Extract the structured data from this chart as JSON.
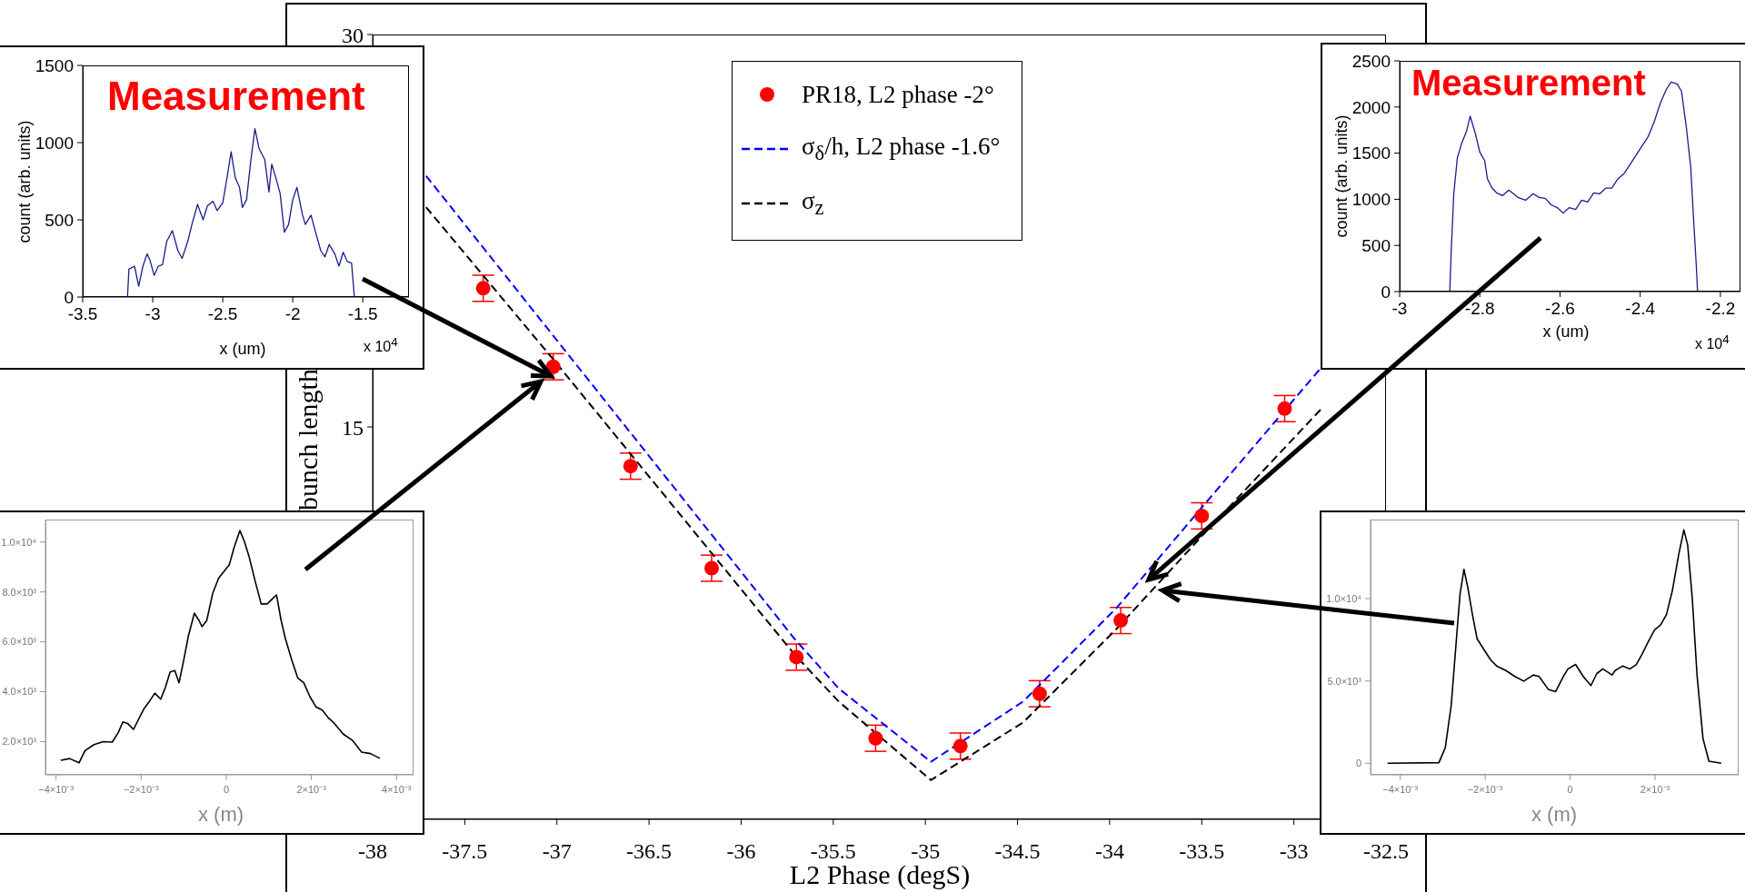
{
  "chart_data": [
    {
      "type": "line",
      "xlabel": "L2 Phase (degS)",
      "ylabel": "bunch length",
      "xlim": [
        -38,
        -32.5
      ],
      "xticks": [
        -38,
        -37.5,
        -37,
        -36.5,
        -36,
        -35.5,
        -35,
        -34.5,
        -34,
        -33.5,
        -33,
        -32.5
      ],
      "ylim": [
        0,
        30
      ],
      "yticks": [
        {
          "value": 0,
          "label": null
        },
        {
          "value": 5,
          "label": null
        },
        {
          "value": 10,
          "label": null
        },
        15,
        {
          "value": 20,
          "label": null
        },
        {
          "value": 25,
          "label": null
        },
        30
      ],
      "legend": "top",
      "series": [
        {
          "name": "PR18, L2 phase -2°",
          "type": "scatter",
          "marker": "circle",
          "color": "#ff0000",
          "x": [
            -37.4,
            -37.02,
            -36.6,
            -36.16,
            -35.7,
            -35.27,
            -34.81,
            -34.38,
            -33.94,
            -33.5,
            -33.05
          ],
          "values": [
            20.3,
            17.3,
            13.5,
            9.6,
            6.2,
            3.1,
            2.8,
            4.8,
            7.6,
            11.6,
            15.7
          ],
          "errors": [
            0.5,
            0.5,
            0.5,
            0.5,
            0.5,
            0.5,
            0.5,
            0.5,
            0.5,
            0.5,
            0.5
          ]
        },
        {
          "name": "σ$_{δ}$/h, L2 phase -1.6°",
          "type": "line",
          "line_style": "dashed",
          "color": "#0000ff",
          "x": [
            -37.71,
            -37.01,
            -35.71,
            -35.47,
            -34.97,
            -34.47,
            -33.96,
            -33.49,
            -32.86
          ],
          "values": [
            24.6,
            18.4,
            6.9,
            5.0,
            2.2,
            4.5,
            8.1,
            12.0,
            17.2
          ]
        },
        {
          "name": "σ$_{z}$",
          "type": "line",
          "line_style": "dashed",
          "color": "#000000",
          "x": [
            -37.71,
            -37.01,
            -35.71,
            -35.47,
            -34.97,
            -34.47,
            -33.96,
            -33.49,
            -32.85
          ],
          "values": [
            23.4,
            17.5,
            6.3,
            4.5,
            1.5,
            3.7,
            7.3,
            10.9,
            15.7
          ]
        }
      ]
    },
    {
      "type": "line",
      "xlabel": "x (um)",
      "ylabel": "count (arb. units)",
      "annotations": [
        "Measurement",
        "x 10$^{4}$"
      ],
      "xlim": [
        -3.5,
        -1.17
      ],
      "xticks": [
        -3.5,
        -3,
        -2.5,
        -2,
        -1.5
      ],
      "ylim": [
        0,
        1500
      ],
      "yticks": [
        0,
        500,
        1000,
        1500
      ],
      "color": "#1c1c8c",
      "x": [
        -3.18,
        -3.17,
        -3.13,
        -3.1,
        -3.07,
        -3.04,
        -3.02,
        -2.99,
        -2.96,
        -2.93,
        -2.9,
        -2.86,
        -2.82,
        -2.79,
        -2.75,
        -2.72,
        -2.68,
        -2.64,
        -2.61,
        -2.57,
        -2.54,
        -2.5,
        -2.47,
        -2.44,
        -2.41,
        -2.38,
        -2.36,
        -2.33,
        -2.3,
        -2.27,
        -2.24,
        -2.2,
        -2.17,
        -2.15,
        -2.12,
        -2.09,
        -2.06,
        -2.03,
        -2.0,
        -1.97,
        -1.93,
        -1.91,
        -1.87,
        -1.84,
        -1.8,
        -1.77,
        -1.74,
        -1.7,
        -1.67,
        -1.64,
        -1.61,
        -1.58,
        -1.56
      ],
      "values": [
        0,
        180,
        200,
        70,
        200,
        280,
        240,
        140,
        200,
        210,
        360,
        430,
        300,
        250,
        360,
        470,
        600,
        500,
        590,
        620,
        560,
        610,
        770,
        940,
        770,
        710,
        580,
        630,
        880,
        1090,
        960,
        890,
        680,
        860,
        770,
        670,
        420,
        470,
        630,
        710,
        530,
        470,
        530,
        430,
        300,
        260,
        340,
        280,
        200,
        290,
        230,
        220,
        0
      ]
    },
    {
      "type": "line",
      "xlabel": "x (um)",
      "ylabel": "count (arb. units)",
      "annotations": [
        "Measurement",
        "x 10$^{4}$"
      ],
      "xlim": [
        -3,
        -2.15
      ],
      "xticks": [
        -3,
        -2.8,
        -2.6,
        -2.4,
        -2.2
      ],
      "ylim": [
        0,
        2500
      ],
      "yticks": [
        0,
        500,
        1000,
        1500,
        2000,
        2500
      ],
      "color": "#1c1c8c",
      "x": [
        -2.875,
        -2.871,
        -2.865,
        -2.856,
        -2.845,
        -2.833,
        -2.824,
        -2.811,
        -2.8,
        -2.788,
        -2.781,
        -2.769,
        -2.758,
        -2.743,
        -2.728,
        -2.716,
        -2.705,
        -2.686,
        -2.667,
        -2.652,
        -2.637,
        -2.622,
        -2.607,
        -2.592,
        -2.577,
        -2.561,
        -2.546,
        -2.531,
        -2.516,
        -2.501,
        -2.486,
        -2.471,
        -2.456,
        -2.44,
        -2.425,
        -2.41,
        -2.395,
        -2.38,
        -2.365,
        -2.35,
        -2.335,
        -2.323,
        -2.308,
        -2.297,
        -2.285,
        -2.274,
        -2.267,
        -2.26,
        -2.257
      ],
      "values": [
        0,
        470,
        1060,
        1450,
        1610,
        1740,
        1900,
        1710,
        1510,
        1420,
        1220,
        1120,
        1070,
        1040,
        1100,
        1060,
        1020,
        990,
        1060,
        1020,
        1010,
        940,
        910,
        850,
        910,
        890,
        990,
        970,
        1070,
        1060,
        1120,
        1120,
        1220,
        1280,
        1380,
        1480,
        1580,
        1680,
        1840,
        2040,
        2190,
        2270,
        2250,
        2170,
        1780,
        1350,
        790,
        270,
        0
      ]
    },
    {
      "type": "line",
      "xlabel": "x (m)",
      "xlim": [
        -0.00425,
        0.0044
      ],
      "xticks": [
        {
          "value": -0.004,
          "label": "−4×10⁻³"
        },
        {
          "value": -0.002,
          "label": "−2×10⁻³"
        },
        0,
        {
          "value": 0.002,
          "label": "2×10⁻³"
        },
        {
          "value": 0.004,
          "label": "4×10⁻³"
        }
      ],
      "ylim": [
        670,
        10900
      ],
      "yticks": [
        {
          "value": 2000,
          "label": "2.0×10³"
        },
        {
          "value": 4000,
          "label": "4.0×10³"
        },
        {
          "value": 6000,
          "label": "6.0×10³"
        },
        {
          "value": 8000,
          "label": "8.0×10³"
        },
        {
          "value": 10000,
          "label": "1.0×10⁴"
        }
      ],
      "color": "#000000",
      "x": [
        -0.00389,
        -0.00368,
        -0.00346,
        -0.00332,
        -0.00311,
        -0.00289,
        -0.00268,
        -0.00254,
        -0.00243,
        -0.00232,
        -0.00218,
        -0.00204,
        -0.00193,
        -0.00182,
        -0.00168,
        -0.00154,
        -0.00143,
        -0.00132,
        -0.00121,
        -0.00111,
        -0.001,
        -0.00089,
        -0.00075,
        -0.00064,
        -0.00057,
        -0.00046,
        -0.00032,
        -0.00018,
        -4e-05,
        7e-05,
        0.00018,
        0.00032,
        0.00043,
        0.00054,
        0.00068,
        0.00082,
        0.00096,
        0.00107,
        0.00118,
        0.00129,
        0.00139,
        0.00154,
        0.00168,
        0.00182,
        0.00196,
        0.00211,
        0.00225,
        0.00239,
        0.00254,
        0.00275,
        0.00296,
        0.00318,
        0.00339,
        0.00361
      ],
      "values": [
        1250,
        1320,
        1150,
        1640,
        1880,
        2000,
        1980,
        2360,
        2790,
        2730,
        2490,
        2970,
        3330,
        3580,
        3940,
        3700,
        4180,
        4790,
        4850,
        4360,
        5270,
        6240,
        7150,
        6850,
        6610,
        6850,
        7940,
        8550,
        8850,
        9090,
        9760,
        10460,
        10000,
        9390,
        8420,
        7520,
        7520,
        7700,
        7880,
        6850,
        6120,
        5270,
        4550,
        4360,
        3820,
        3390,
        3270,
        2970,
        2730,
        2300,
        2060,
        1580,
        1520,
        1330
      ]
    },
    {
      "type": "line",
      "xlabel": "x (m)",
      "xlim": [
        -0.0047,
        0.00397
      ],
      "xticks": [
        {
          "value": -0.004,
          "label": "−4×10⁻³"
        },
        {
          "value": -0.002,
          "label": "−2×10⁻³"
        },
        0,
        {
          "value": 0.002,
          "label": "2×10⁻³"
        }
      ],
      "ylim": [
        -700,
        14800
      ],
      "yticks": [
        0,
        {
          "value": 5000,
          "label": "5.0×10³"
        },
        {
          "value": 10000,
          "label": "1.0×10⁴"
        }
      ],
      "color": "#000000",
      "x": [
        -0.0043,
        -0.00309,
        -0.00294,
        -0.0028,
        -0.00266,
        -0.00259,
        -0.0025,
        -0.00241,
        -0.0023,
        -0.00219,
        -0.00201,
        -0.00187,
        -0.00173,
        -0.00151,
        -0.0013,
        -0.00109,
        -0.00087,
        -0.00073,
        -0.00051,
        -0.00034,
        -0.00016,
        -5e-05,
        0.00013,
        0.00031,
        0.00049,
        0.00063,
        0.00077,
        0.00099,
        0.00106,
        0.00124,
        0.00141,
        0.00156,
        0.0017,
        0.00184,
        0.00199,
        0.00213,
        0.00227,
        0.00241,
        0.00256,
        0.00268,
        0.00277,
        0.00288,
        0.00299,
        0.00313,
        0.00327,
        0.00356
      ],
      "values": [
        0,
        40,
        950,
        3520,
        8110,
        10310,
        11780,
        10680,
        9030,
        7560,
        6830,
        6280,
        5910,
        5630,
        5270,
        4990,
        5360,
        5270,
        4480,
        4350,
        5270,
        5730,
        6000,
        5270,
        4720,
        5450,
        5730,
        5360,
        5630,
        5910,
        5730,
        6000,
        6640,
        7380,
        8110,
        8390,
        9030,
        10500,
        12700,
        14170,
        13250,
        9950,
        5360,
        1510,
        130,
        0
      ]
    }
  ]
}
